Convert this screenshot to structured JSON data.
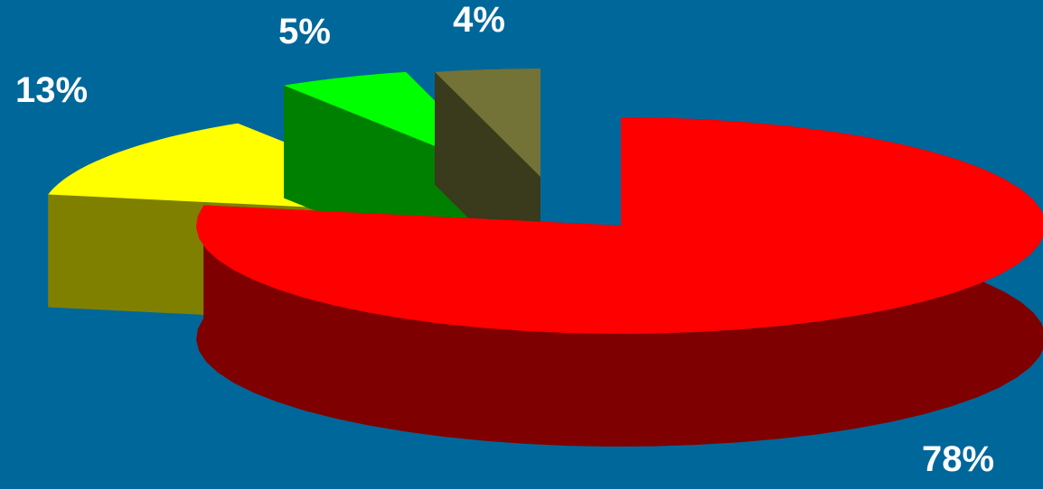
{
  "chart_data": {
    "type": "pie",
    "style": "3d-exploded",
    "background": "#00679B",
    "slices": [
      {
        "label": "78%",
        "value": 78,
        "color": "#FF0000",
        "side_color": "#7F0000"
      },
      {
        "label": "13%",
        "value": 13,
        "color": "#FFFF00",
        "side_color": "#808000"
      },
      {
        "label": "5%",
        "value": 5,
        "color": "#00FF00",
        "side_color": "#008000"
      },
      {
        "label": "4%",
        "value": 4,
        "color": "#737337",
        "side_color": "#3A3A1C"
      }
    ]
  }
}
